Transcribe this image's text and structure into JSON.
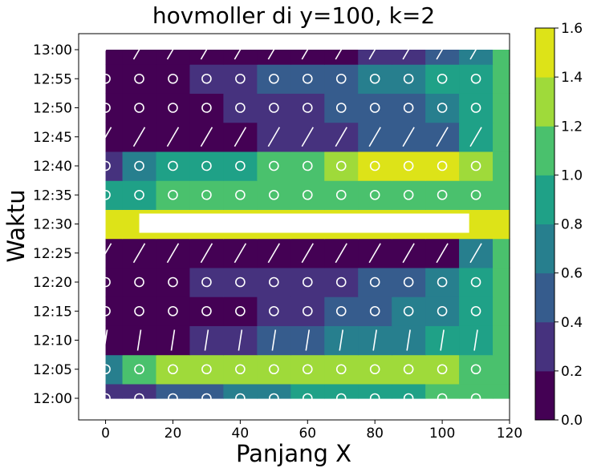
{
  "chart_data": {
    "type": "heatmap",
    "title": "hovmoller di y=100, k=2",
    "xlabel": "Panjang X",
    "ylabel": "Waktu",
    "xlim": [
      -8,
      120
    ],
    "x_ticks": [
      0,
      20,
      40,
      60,
      80,
      100,
      120
    ],
    "x_tick_labels": [
      "0",
      "20",
      "40",
      "60",
      "80",
      "100",
      "120"
    ],
    "y_tick_labels": [
      "12:00",
      "12:05",
      "12:10",
      "12:15",
      "12:20",
      "12:25",
      "12:30",
      "12:35",
      "12:40",
      "12:45",
      "12:50",
      "12:55",
      "13:00"
    ],
    "colorbar": {
      "min": 0.0,
      "max": 1.6,
      "levels": [
        0.0,
        0.2,
        0.4,
        0.6,
        0.8,
        1.0,
        1.2,
        1.4,
        1.6
      ],
      "tick_labels": [
        "0.0",
        "0.2",
        "0.4",
        "0.6",
        "0.8",
        "1.0",
        "1.2",
        "1.4",
        "1.6"
      ],
      "colors": [
        "#440154",
        "#46327e",
        "#365c8d",
        "#277f8e",
        "#1fa187",
        "#4ac16d",
        "#9fda3a",
        "#dde318"
      ]
    },
    "quiver_x": [
      0,
      10,
      20,
      30,
      40,
      50,
      60,
      70,
      80,
      90,
      100,
      110
    ],
    "quiver_times": [
      {
        "time": "12:00",
        "marker": "circle"
      },
      {
        "time": "12:05",
        "marker": "circle"
      },
      {
        "time": "12:10",
        "marker": "arrow-up"
      },
      {
        "time": "12:15",
        "marker": "circle"
      },
      {
        "time": "12:20",
        "marker": "circle"
      },
      {
        "time": "12:25",
        "marker": "arrow-diag"
      },
      {
        "time": "12:30",
        "marker": "none"
      },
      {
        "time": "12:35",
        "marker": "circle"
      },
      {
        "time": "12:40",
        "marker": "circle"
      },
      {
        "time": "12:45",
        "marker": "arrow-diag"
      },
      {
        "time": "12:50",
        "marker": "circle"
      },
      {
        "time": "12:55",
        "marker": "circle"
      },
      {
        "time": "13:00",
        "marker": "arrow-diag"
      }
    ],
    "rows": [
      {
        "time": "12:00",
        "values": [
          0.2,
          0.3,
          0.4,
          0.5,
          0.6,
          0.7,
          0.8,
          0.8,
          0.9,
          0.9,
          1.0,
          1.1,
          1.1
        ]
      },
      {
        "time": "12:05",
        "values": [
          0.7,
          1.1,
          1.3,
          1.3,
          1.3,
          1.3,
          1.3,
          1.3,
          1.3,
          1.3,
          1.2,
          1.1,
          1.1
        ]
      },
      {
        "time": "12:10",
        "values": [
          0.1,
          0.1,
          0.1,
          0.2,
          0.3,
          0.4,
          0.5,
          0.6,
          0.7,
          0.7,
          0.8,
          0.9,
          1.1
        ]
      },
      {
        "time": "12:15",
        "values": [
          0.0,
          0.0,
          0.0,
          0.1,
          0.1,
          0.2,
          0.3,
          0.4,
          0.5,
          0.6,
          0.7,
          0.9,
          1.1
        ]
      },
      {
        "time": "12:20",
        "values": [
          0.0,
          0.0,
          0.1,
          0.2,
          0.3,
          0.3,
          0.3,
          0.3,
          0.4,
          0.5,
          0.6,
          0.9,
          1.1
        ]
      },
      {
        "time": "12:25",
        "values": [
          0.0,
          0.0,
          0.0,
          0.0,
          0.0,
          0.0,
          0.1,
          0.1,
          0.1,
          0.1,
          0.1,
          0.7,
          1.1
        ]
      },
      {
        "time": "12:30",
        "values": [
          1.5,
          1.5,
          1.6,
          1.6,
          1.6,
          1.6,
          1.6,
          1.6,
          1.6,
          1.6,
          1.6,
          1.6,
          1.5
        ]
      },
      {
        "time": "12:35",
        "values": [
          0.8,
          0.9,
          1.0,
          1.0,
          1.0,
          1.0,
          1.1,
          1.1,
          1.1,
          1.1,
          1.1,
          1.1,
          1.1
        ]
      },
      {
        "time": "12:40",
        "values": [
          0.3,
          0.6,
          0.9,
          0.9,
          0.9,
          1.0,
          1.1,
          1.3,
          1.4,
          1.5,
          1.5,
          1.3,
          1.1
        ]
      },
      {
        "time": "12:45",
        "values": [
          0.0,
          0.0,
          0.0,
          0.1,
          0.1,
          0.2,
          0.2,
          0.3,
          0.4,
          0.5,
          0.5,
          0.9,
          1.1
        ]
      },
      {
        "time": "12:50",
        "values": [
          0.0,
          0.0,
          0.0,
          0.1,
          0.2,
          0.3,
          0.3,
          0.4,
          0.4,
          0.5,
          0.6,
          0.9,
          1.1
        ]
      },
      {
        "time": "12:55",
        "values": [
          0.0,
          0.0,
          0.1,
          0.2,
          0.3,
          0.4,
          0.5,
          0.5,
          0.6,
          0.7,
          0.8,
          0.9,
          1.1
        ]
      },
      {
        "time": "13:00",
        "values": [
          0.0,
          0.0,
          0.0,
          0.0,
          0.0,
          0.0,
          0.1,
          0.1,
          0.2,
          0.3,
          0.4,
          0.6,
          1.1
        ]
      }
    ],
    "row_x": [
      0,
      10,
      20,
      30,
      40,
      50,
      60,
      70,
      80,
      90,
      100,
      110,
      120
    ],
    "grid": false
  }
}
